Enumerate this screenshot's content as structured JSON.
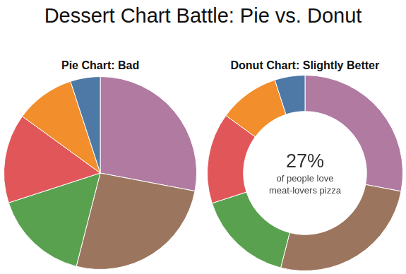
{
  "title": "Dessert Chart Battle: Pie vs. Donut",
  "chart_data": [
    {
      "type": "pie",
      "title": "Pie Chart: Bad",
      "categories": [
        null,
        null,
        null,
        null,
        null,
        null
      ],
      "values": [
        28,
        26,
        16,
        15,
        10,
        5
      ],
      "colors": [
        "#b07aa1",
        "#9c755f",
        "#59a14f",
        "#e15759",
        "#f28e2b",
        "#4e79a7"
      ]
    },
    {
      "type": "doughnut",
      "title": "Donut Chart: Slightly Better",
      "categories": [
        null,
        null,
        null,
        null,
        null,
        null
      ],
      "values": [
        28,
        26,
        16,
        15,
        10,
        5
      ],
      "colors": [
        "#b07aa1",
        "#9c755f",
        "#59a14f",
        "#e15759",
        "#f28e2b",
        "#4e79a7"
      ],
      "annotations": [
        "27%",
        "of people love",
        "meat-lovers pizza"
      ]
    }
  ]
}
